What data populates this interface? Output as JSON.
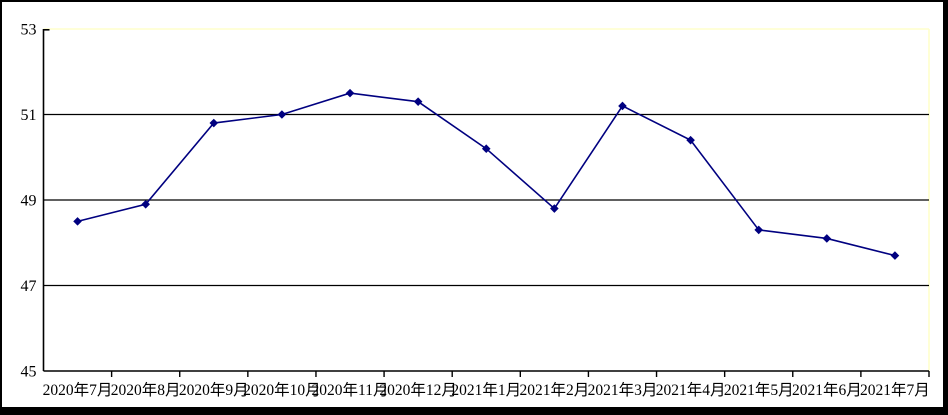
{
  "chart_data": {
    "type": "line",
    "categories": [
      "2020年7月",
      "2020年8月",
      "2020年9月",
      "2020年10月",
      "2020年11月",
      "2020年12月",
      "2021年1月",
      "2021年2月",
      "2021年3月",
      "2021年4月",
      "2021年5月",
      "2021年6月",
      "2021年7月"
    ],
    "values": [
      48.5,
      48.9,
      50.8,
      51.0,
      51.5,
      51.3,
      50.2,
      48.8,
      51.2,
      50.4,
      48.3,
      48.1,
      47.7
    ],
    "ylim": [
      45,
      53
    ],
    "yticks": [
      53,
      51,
      49,
      47,
      45
    ],
    "xlabel": "",
    "ylabel": "",
    "title": "",
    "legend": "none",
    "grid": "horizontal-black-gridlines-at-47-49-51",
    "colors": {
      "line": "#000080",
      "marker": "#000080",
      "gridline": "#000000",
      "axis": "#000000",
      "plot_border": "#ffffcc",
      "background": "#ffffff",
      "frame": "#000000",
      "text": "#000000"
    }
  }
}
